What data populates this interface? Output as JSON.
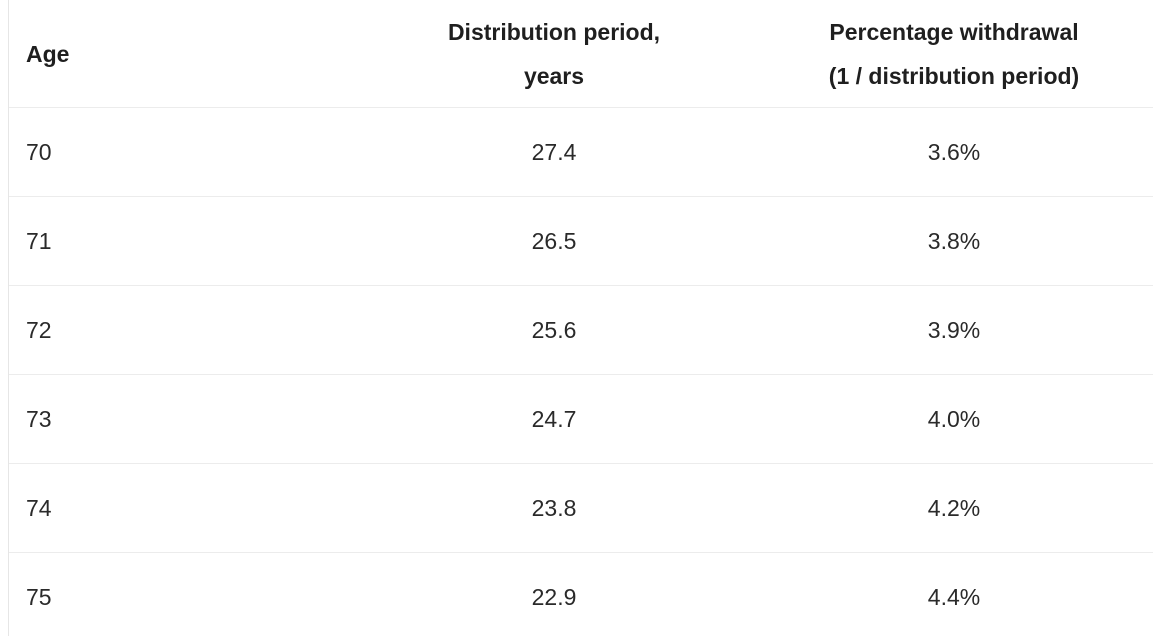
{
  "table": {
    "headers": {
      "age": "Age",
      "distribution_line1": "Distribution period,",
      "distribution_line2": "years",
      "percentage_line1": "Percentage withdrawal",
      "percentage_line2": "(1 / distribution period)"
    },
    "rows": [
      {
        "age": "70",
        "distribution": "27.4",
        "percentage": "3.6%"
      },
      {
        "age": "71",
        "distribution": "26.5",
        "percentage": "3.8%"
      },
      {
        "age": "72",
        "distribution": "25.6",
        "percentage": "3.9%"
      },
      {
        "age": "73",
        "distribution": "24.7",
        "percentage": "4.0%"
      },
      {
        "age": "74",
        "distribution": "23.8",
        "percentage": "4.2%"
      },
      {
        "age": "75",
        "distribution": "22.9",
        "percentage": "4.4%"
      }
    ]
  }
}
